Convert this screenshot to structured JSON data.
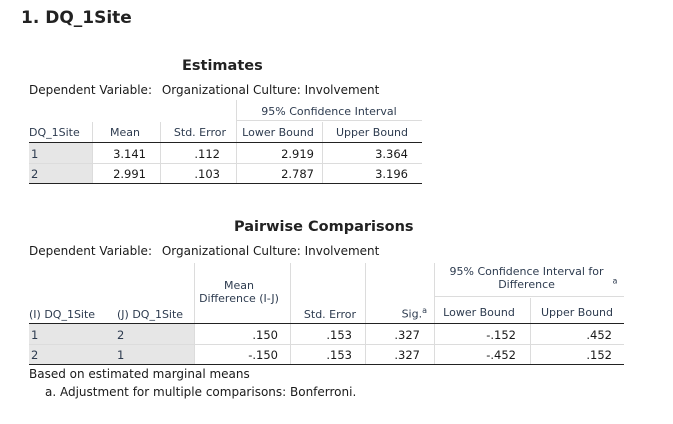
{
  "section": {
    "title": "1. DQ_1Site"
  },
  "estimates": {
    "title": "Estimates",
    "dep_label": "Dependent Variable:",
    "dep_value": "Organizational Culture: Involvement",
    "ci_header": "95% Confidence Interval",
    "columns": [
      "DQ_1Site",
      "Mean",
      "Std. Error",
      "Lower Bound",
      "Upper Bound"
    ],
    "rows": [
      {
        "site": "1",
        "mean": "3.141",
        "se": ".112",
        "lower": "2.919",
        "upper": "3.364"
      },
      {
        "site": "2",
        "mean": "2.991",
        "se": ".103",
        "lower": "2.787",
        "upper": "3.196"
      }
    ]
  },
  "pairwise": {
    "title": "Pairwise Comparisons",
    "dep_label": "Dependent Variable:",
    "dep_value": "Organizational Culture: Involvement",
    "ci_header": "95% Confidence Interval for Difference",
    "ci_header_sup": "a",
    "columns": {
      "i_site": "(I) DQ_1Site",
      "j_site": "(J) DQ_1Site",
      "mean_diff": "Mean Difference (I-J)",
      "se": "Std. Error",
      "sig": "Sig.",
      "sig_sup": "a",
      "lower": "Lower Bound",
      "upper": "Upper Bound"
    },
    "rows": [
      {
        "i": "1",
        "j": "2",
        "diff": ".150",
        "se": ".153",
        "sig": ".327",
        "lower": "-.152",
        "upper": ".452"
      },
      {
        "i": "2",
        "j": "1",
        "diff": "-.150",
        "se": ".153",
        "sig": ".327",
        "lower": "-.452",
        "upper": ".152"
      }
    ],
    "footnote1": "Based on estimated marginal means",
    "footnote2": "a. Adjustment for multiple comparisons: Bonferroni."
  }
}
